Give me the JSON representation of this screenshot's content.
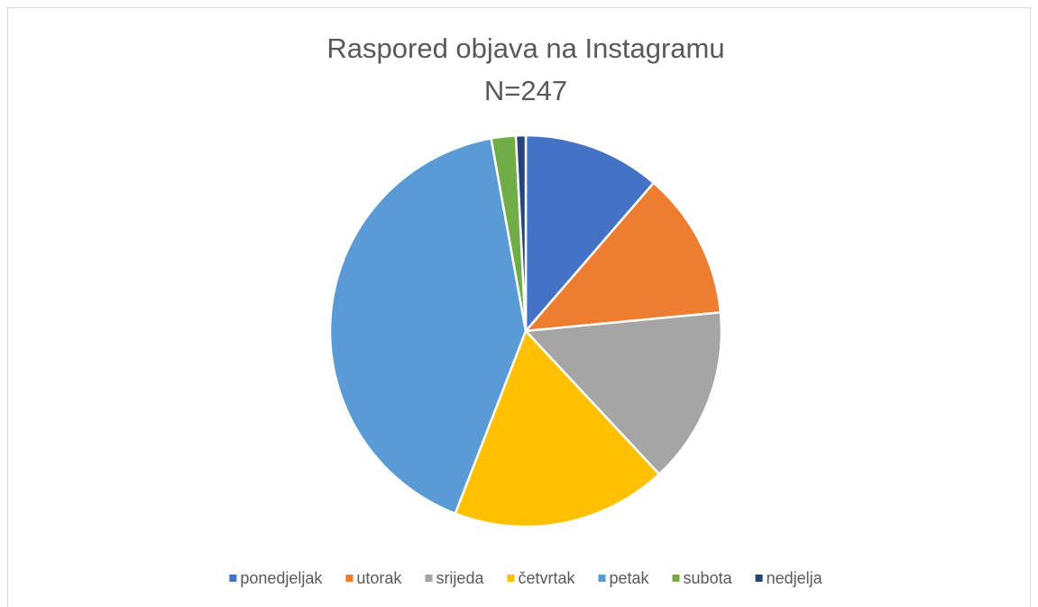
{
  "chart_data": {
    "type": "pie",
    "title": "Raspored objava na Instagramu",
    "subtitle": "N=247",
    "categories": [
      "ponedjeljak",
      "utorak",
      "srijeda",
      "četvrtak",
      "petak",
      "subota",
      "nedjelja"
    ],
    "values": [
      28,
      30,
      36,
      44,
      102,
      5,
      2
    ],
    "colors": [
      "#4472c4",
      "#ed7d31",
      "#a5a5a5",
      "#ffc000",
      "#5b9bd5",
      "#70ad47",
      "#264478"
    ],
    "legend": "bottom"
  }
}
